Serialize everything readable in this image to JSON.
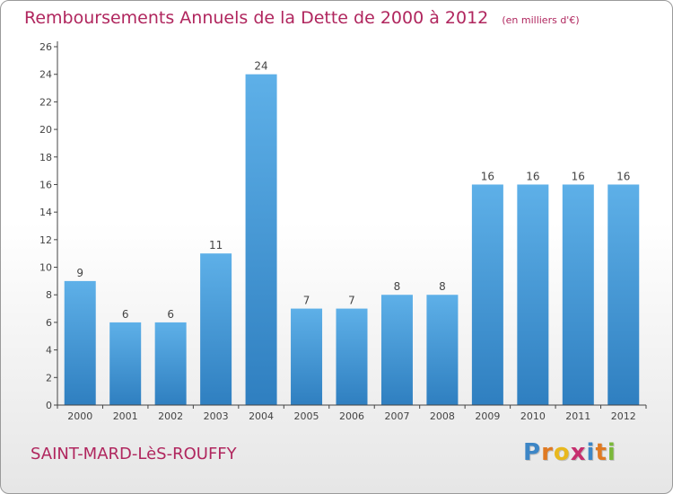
{
  "chart_data": {
    "type": "bar",
    "title": "Remboursements Annuels de la Dette de 2000 à 2012",
    "subtitle": "(en milliers d'€)",
    "categories": [
      "2000",
      "2001",
      "2002",
      "2003",
      "2004",
      "2005",
      "2006",
      "2007",
      "2008",
      "2009",
      "2010",
      "2011",
      "2012"
    ],
    "values": [
      9,
      6,
      6,
      11,
      24,
      7,
      7,
      8,
      8,
      16,
      16,
      16,
      16
    ],
    "ylim": [
      0,
      26
    ],
    "yticks": [
      0,
      2,
      4,
      6,
      8,
      10,
      12,
      14,
      16,
      18,
      20,
      22,
      24,
      26
    ],
    "xlabel": "",
    "ylabel": "",
    "grid": false,
    "bar_color_top": "#5eb0e8",
    "bar_color_bottom": "#2f7fc0"
  },
  "footer": {
    "city": "SAINT-MARD-LèS-ROUFFY",
    "brand_letters": [
      "P",
      "r",
      "o",
      "x",
      "i",
      "t",
      "i"
    ],
    "brand_colors": [
      "#3d86c6",
      "#e07a22",
      "#e8b81e",
      "#c62f6e",
      "#3d86c6",
      "#e07a22",
      "#7bb83a"
    ]
  },
  "colors": {
    "title": "#b0265e",
    "axis": "#444444"
  }
}
